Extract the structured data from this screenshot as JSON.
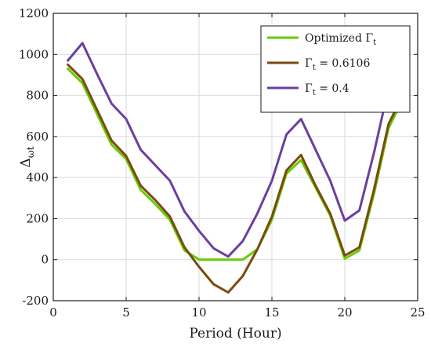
{
  "chart_data": {
    "type": "line",
    "xlabel": "Period (Hour)",
    "ylabel_main": "Δ",
    "ylabel_sub": "ωt",
    "xlim": [
      0,
      25
    ],
    "ylim": [
      -200,
      1200
    ],
    "xticks": [
      0,
      5,
      10,
      15,
      20,
      25
    ],
    "yticks": [
      -200,
      0,
      200,
      400,
      600,
      800,
      1000,
      1200
    ],
    "grid": true,
    "legend_position": "top-right",
    "x": [
      1,
      2,
      3,
      4,
      5,
      6,
      7,
      8,
      9,
      10,
      11,
      12,
      13,
      14,
      15,
      16,
      17,
      18,
      19,
      20,
      21,
      22,
      23,
      24
    ],
    "series": [
      {
        "name": "Optimized Γ",
        "name_main": "Optimized Γ",
        "name_sub": "t",
        "name_suffix": "",
        "color": "#66cc00",
        "values": [
          930,
          860,
          710,
          560,
          490,
          340,
          270,
          195,
          45,
          0,
          0,
          0,
          0,
          50,
          195,
          420,
          485,
          350,
          215,
          5,
          45,
          320,
          640,
          785
        ]
      },
      {
        "name": "Γt = 0.6106",
        "name_main": "Γ",
        "name_sub": "t",
        "name_suffix": " = 0.6106",
        "color": "#7a4a10",
        "values": [
          950,
          880,
          730,
          580,
          505,
          360,
          290,
          210,
          60,
          -35,
          -120,
          -160,
          -80,
          50,
          210,
          435,
          510,
          360,
          225,
          20,
          60,
          340,
          660,
          805
        ]
      },
      {
        "name": "Γt = 0.4",
        "name_main": "Γ",
        "name_sub": "t",
        "name_suffix": " = 0.4",
        "color": "#6a3fa0",
        "values": [
          970,
          1055,
          905,
          760,
          685,
          535,
          460,
          385,
          235,
          140,
          55,
          15,
          90,
          225,
          385,
          610,
          685,
          535,
          385,
          190,
          240,
          520,
          835,
          980
        ]
      }
    ]
  }
}
